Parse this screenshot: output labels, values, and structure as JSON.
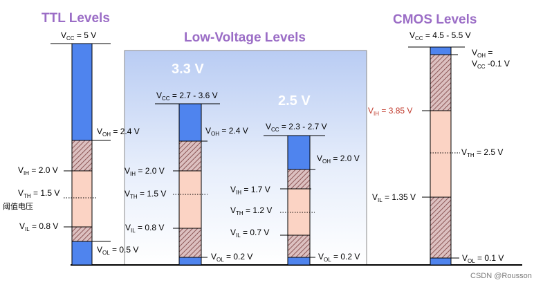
{
  "titles": {
    "ttl": "TTL Levels",
    "low_voltage": "Low-Voltage Levels",
    "cmos": "CMOS Levels",
    "v33": "3.3 V",
    "v25": "2.5 V"
  },
  "ttl": {
    "vcc": {
      "v": "V",
      "s": "CC",
      "rest": " = 5 V"
    },
    "voh": {
      "v": "V",
      "s": "OH",
      "rest": " = 2.4 V"
    },
    "vih": {
      "v": "V",
      "s": "IH",
      "rest": " = 2.0 V"
    },
    "vth": {
      "v": "V",
      "s": "TH",
      "rest": " = 1.5 V"
    },
    "vil": {
      "v": "V",
      "s": "IL",
      "rest": " = 0.8 V"
    },
    "vol": {
      "v": "V",
      "s": "OL",
      "rest": " = 0.5 V"
    },
    "threshold_note": "阈值电压"
  },
  "lv33": {
    "vcc": {
      "v": "V",
      "s": "CC",
      "rest": " = 2.7 - 3.6 V"
    },
    "voh": {
      "v": "V",
      "s": "OH",
      "rest": " = 2.4 V"
    },
    "vih": {
      "v": "V",
      "s": "IH",
      "rest": " = 2.0 V"
    },
    "vth": {
      "v": "V",
      "s": "TH",
      "rest": " = 1.5 V"
    },
    "vil": {
      "v": "V",
      "s": "IL",
      "rest": " = 0.8 V"
    },
    "vol": {
      "v": "V",
      "s": "OL",
      "rest": " = 0.2 V"
    }
  },
  "lv25": {
    "vcc": {
      "v": "V",
      "s": "CC",
      "rest": " = 2.3 - 2.7 V"
    },
    "voh": {
      "v": "V",
      "s": "OH",
      "rest": " = 2.0 V"
    },
    "vih": {
      "v": "V",
      "s": "IH",
      "rest": " = 1.7 V"
    },
    "vth": {
      "v": "V",
      "s": "TH",
      "rest": " = 1.2 V"
    },
    "vil": {
      "v": "V",
      "s": "IL",
      "rest": " = 0.7 V"
    },
    "vol": {
      "v": "V",
      "s": "OL",
      "rest": " = 0.2 V"
    }
  },
  "cmos": {
    "vcc": {
      "v": "V",
      "s": "CC",
      "rest": " = 4.5 - 5.5 V"
    },
    "voh_line1": {
      "v": "V",
      "s": "OH",
      "rest": " ="
    },
    "voh_line2": {
      "v": "V",
      "s": "CC",
      "rest": " -0.1 V"
    },
    "vih": {
      "v": "V",
      "s": "IH",
      "rest": " = 3.85 V"
    },
    "vth": {
      "v": "V",
      "s": "TH",
      "rest": " = 2.5 V"
    },
    "vil": {
      "v": "V",
      "s": "IL",
      "rest": " = 1.35 V"
    },
    "vol": {
      "v": "V",
      "s": "OL",
      "rest": " = 0.1 V"
    }
  },
  "watermark": "CSDN @Rousson",
  "colors": {
    "output_blue": "#4f84ee",
    "undefined_hatch": "#c9a1a1",
    "input_peach": "#fbd3c4",
    "accent_purple": "#9b6dc6",
    "vih_red": "#c0392b"
  }
}
